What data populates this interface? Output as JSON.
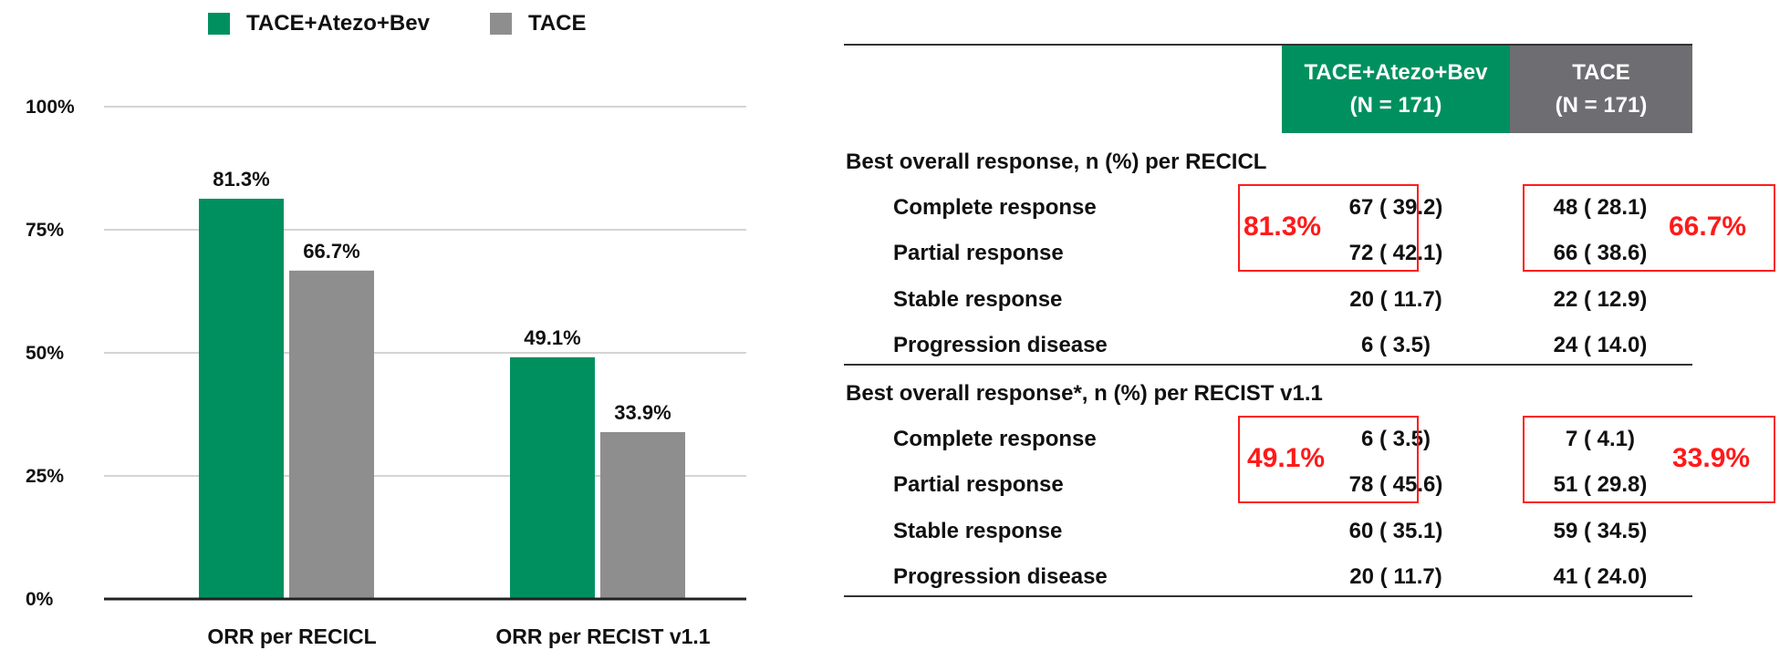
{
  "chart_data": {
    "type": "bar",
    "categories": [
      "ORR per RECICL",
      "ORR per RECIST v1.1"
    ],
    "series": [
      {
        "name": "TACE+Atezo+Bev",
        "values": [
          81.3,
          49.1
        ],
        "labels": [
          "81.3%",
          "49.1%"
        ],
        "color": "#00905f"
      },
      {
        "name": "TACE",
        "values": [
          66.7,
          33.9
        ],
        "labels": [
          "66.7%",
          "33.9%"
        ],
        "color": "#8e8e8e"
      }
    ],
    "yticks": [
      "0%",
      "25%",
      "50%",
      "75%",
      "100%"
    ],
    "ylim": [
      0,
      100
    ],
    "grid": true,
    "legend_position": "top"
  },
  "table": {
    "headers": [
      {
        "line1": "TACE+Atezo+Bev",
        "line2": "(N = 171)"
      },
      {
        "line1": "TACE",
        "line2": "(N = 171)"
      }
    ],
    "sections": [
      {
        "title": "Best overall response, n (%) per RECICL",
        "rows": [
          {
            "label": "Complete response",
            "arm1": "67 ( 39.2)",
            "arm2": "48 ( 28.1)"
          },
          {
            "label": "Partial response",
            "arm1": "72 ( 42.1)",
            "arm2": "66 ( 38.6)"
          },
          {
            "label": "Stable response",
            "arm1": "20 ( 11.7)",
            "arm2": "22 ( 12.9)"
          },
          {
            "label": "Progression disease",
            "arm1": "6 ( 3.5)",
            "arm2": "24 ( 14.0)"
          }
        ],
        "orr_arm1": "81.3%",
        "orr_arm2": "66.7%"
      },
      {
        "title": "Best overall response*, n (%) per RECIST v1.1",
        "rows": [
          {
            "label": "Complete response",
            "arm1": "6 ( 3.5)",
            "arm2": "7 ( 4.1)"
          },
          {
            "label": "Partial response",
            "arm1": "78 ( 45.6)",
            "arm2": "51 ( 29.8)"
          },
          {
            "label": "Stable response",
            "arm1": "60 ( 35.1)",
            "arm2": "59 ( 34.5)"
          },
          {
            "label": "Progression disease",
            "arm1": "20 ( 11.7)",
            "arm2": "41 ( 24.0)"
          }
        ],
        "orr_arm1": "49.1%",
        "orr_arm2": "33.9%"
      }
    ],
    "colors": {
      "header_arm1": "#00905f",
      "header_arm2": "#6d6d72",
      "highlight": "#ff1a1a"
    }
  }
}
